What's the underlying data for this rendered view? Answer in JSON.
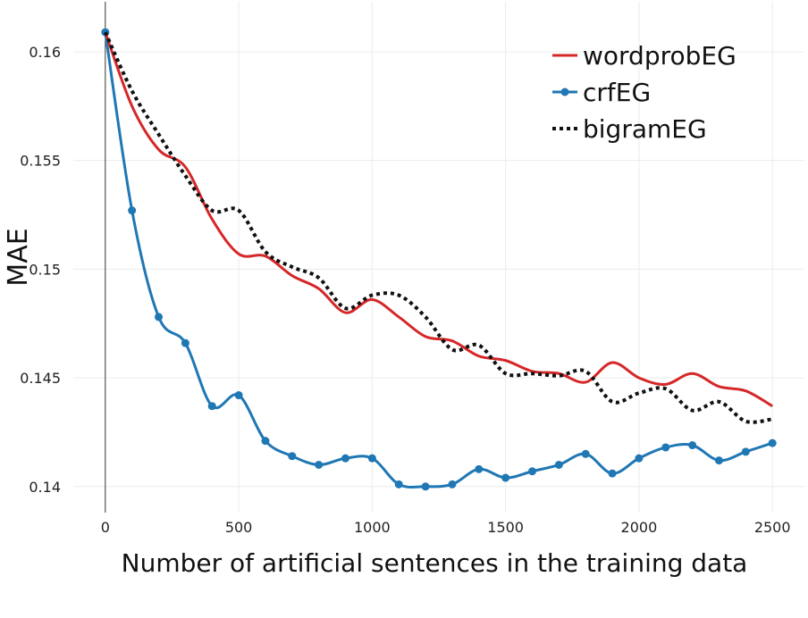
{
  "chart_data": {
    "type": "line",
    "title": "",
    "xlabel": "Number of artificial sentences in the training data",
    "ylabel": "MAE",
    "xlim": [
      -120,
      2620
    ],
    "ylim": [
      0.1388,
      0.1623
    ],
    "x_ticks": [
      0,
      500,
      1000,
      1500,
      2000,
      2500
    ],
    "x_tick_labels": [
      "0",
      "500",
      "1000",
      "1500",
      "2000",
      "2500"
    ],
    "y_ticks": [
      0.14,
      0.145,
      0.15,
      0.155,
      0.16
    ],
    "y_tick_labels": [
      "0.14",
      "0.145",
      "0.15",
      "0.155",
      "0.16"
    ],
    "grid": true,
    "legend_position": "top-right",
    "x": [
      0,
      100,
      200,
      300,
      400,
      500,
      600,
      700,
      800,
      900,
      1000,
      1100,
      1200,
      1300,
      1400,
      1500,
      1600,
      1700,
      1800,
      1900,
      2000,
      2100,
      2200,
      2300,
      2400,
      2500
    ],
    "series": [
      {
        "name": "wordprobEG",
        "color": "#d62728",
        "style": "solid",
        "markers": false,
        "values": [
          0.1609,
          0.1575,
          0.1555,
          0.1547,
          0.1523,
          0.1507,
          0.1506,
          0.1497,
          0.1491,
          0.148,
          0.1486,
          0.1478,
          0.1469,
          0.1467,
          0.146,
          0.1458,
          0.1453,
          0.1452,
          0.1448,
          0.1457,
          0.145,
          0.1447,
          0.1452,
          0.1446,
          0.1444,
          0.1437
        ]
      },
      {
        "name": "crfEG",
        "color": "#1f77b4",
        "style": "solid",
        "markers": true,
        "values": [
          0.1609,
          0.1527,
          0.1478,
          0.1466,
          0.1437,
          0.1442,
          0.1421,
          0.1414,
          0.141,
          0.1413,
          0.1413,
          0.1401,
          0.14,
          0.1401,
          0.1408,
          0.1404,
          0.1407,
          0.141,
          0.1415,
          0.1406,
          0.1413,
          0.1418,
          0.1419,
          0.1412,
          0.1416,
          0.142
        ]
      },
      {
        "name": "bigramEG",
        "color": "#111111",
        "style": "dotted",
        "markers": false,
        "values": [
          0.1609,
          0.1582,
          0.1562,
          0.1543,
          0.1527,
          0.1527,
          0.1508,
          0.1501,
          0.1496,
          0.1482,
          0.1488,
          0.1488,
          0.1478,
          0.1463,
          0.1465,
          0.1452,
          0.1452,
          0.1451,
          0.1453,
          0.1439,
          0.1443,
          0.1445,
          0.1435,
          0.1439,
          0.143,
          0.1431
        ]
      }
    ]
  }
}
